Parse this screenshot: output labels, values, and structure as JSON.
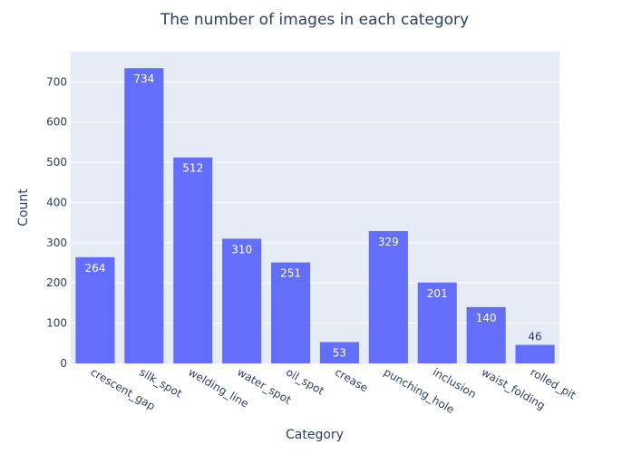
{
  "chart_data": {
    "type": "bar",
    "title": "The number of images in each category",
    "xlabel": "Category",
    "ylabel": "Count",
    "categories": [
      "crescent_gap",
      "silk_spot",
      "welding_line",
      "water_spot",
      "oil_spot",
      "crease",
      "punching_hole",
      "inclusion",
      "waist_folding",
      "rolled_pit"
    ],
    "values": [
      264,
      734,
      512,
      310,
      251,
      53,
      329,
      201,
      140,
      46
    ],
    "ylim": [
      0,
      775
    ],
    "yticks": [
      0,
      100,
      200,
      300,
      400,
      500,
      600,
      700
    ],
    "grid": true,
    "colors": {
      "bar": "#636efa",
      "plot_bg": "#e5ecf6",
      "grid": "#ffffff",
      "text": "#2a3f5f",
      "label_inside": "#ffffff",
      "label_outside": "#2a3f5f"
    }
  }
}
